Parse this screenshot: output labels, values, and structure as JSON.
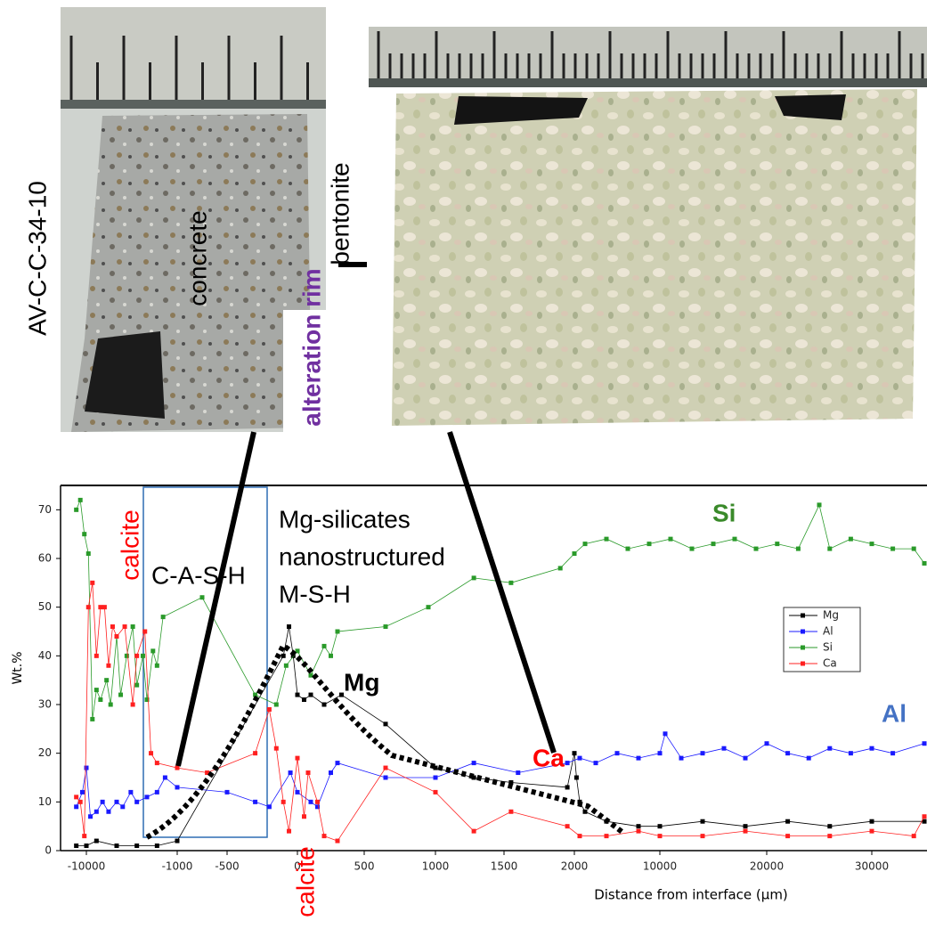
{
  "photo_labels": {
    "sample": "AV-C-C-34-10",
    "concrete": "concrete",
    "bentonite": "bentonite",
    "rim": "alteration rim"
  },
  "chart_data": {
    "type": "line",
    "y_label": "Wt.%",
    "x_label": "Distance from interface (μm)",
    "xlim": [
      -12500,
      35000
    ],
    "ylim": [
      0,
      75
    ],
    "xticks": [
      -10000,
      -1000,
      -500,
      0,
      500,
      1000,
      1500,
      2000,
      10000,
      20000,
      30000
    ],
    "yticks": [
      0,
      10,
      20,
      30,
      40,
      50,
      60,
      70
    ],
    "annotations": {
      "calcite_top": "calcite",
      "calcite_bottom": "calcite",
      "cash": "C-A-S-H",
      "mgsil": "Mg-silicates",
      "nano": "nanostructured",
      "msh": "M-S-H",
      "si": "Si",
      "mg": "Mg",
      "al": "Al",
      "ca": "Ca"
    },
    "series": [
      {
        "name": "Mg",
        "color": "#000000",
        "x": [
          -11000,
          -10000,
          -9000,
          -7000,
          -5000,
          -3000,
          -1000,
          -100,
          -60,
          -30,
          0,
          50,
          100,
          200,
          330,
          650,
          1000,
          1280,
          1550,
          1950,
          2000,
          2200,
          2500,
          3000,
          5000,
          8000,
          10000,
          14000,
          18000,
          22000,
          26000,
          30000,
          35000
        ],
        "values": [
          1,
          1,
          2,
          1,
          1,
          1,
          2,
          40,
          46,
          40,
          32,
          31,
          32,
          30,
          32,
          26,
          17,
          15,
          14,
          13,
          20,
          15,
          10,
          8,
          6,
          5,
          5,
          6,
          5,
          6,
          5,
          6,
          6
        ]
      },
      {
        "name": "Al",
        "color": "#1a1aff",
        "x": [
          -11000,
          -10400,
          -10000,
          -9600,
          -9000,
          -8400,
          -7800,
          -7000,
          -6400,
          -5600,
          -5000,
          -4000,
          -3000,
          -2200,
          -1000,
          -500,
          -300,
          -200,
          -50,
          0,
          100,
          150,
          250,
          300,
          650,
          1000,
          1280,
          1600,
          1950,
          2500,
          4000,
          6000,
          8000,
          10000,
          10500,
          12000,
          14000,
          16000,
          18000,
          20000,
          22000,
          24000,
          26000,
          28000,
          30000,
          32000,
          35000
        ],
        "values": [
          9,
          12,
          17,
          7,
          8,
          10,
          8,
          10,
          9,
          12,
          10,
          11,
          12,
          15,
          13,
          12,
          10,
          9,
          16,
          12,
          10,
          9,
          16,
          18,
          15,
          15,
          18,
          16,
          18,
          19,
          18,
          20,
          19,
          20,
          24,
          19,
          20,
          21,
          19,
          22,
          20,
          19,
          21,
          20,
          21,
          20,
          22
        ]
      },
      {
        "name": "Si",
        "color": "#2a9a2a",
        "x": [
          -11000,
          -10600,
          -10200,
          -9800,
          -9400,
          -9000,
          -8600,
          -8000,
          -7600,
          -7000,
          -6600,
          -6000,
          -5400,
          -5000,
          -4400,
          -4000,
          -3400,
          -3000,
          -2400,
          -750,
          -300,
          -150,
          -80,
          0,
          100,
          200,
          250,
          300,
          650,
          950,
          1280,
          1550,
          1900,
          2000,
          3000,
          5000,
          7000,
          9000,
          11000,
          13000,
          15000,
          17000,
          19000,
          21000,
          23000,
          25000,
          26000,
          28000,
          30000,
          32000,
          34000,
          35000
        ],
        "values": [
          70,
          72,
          65,
          61,
          27,
          33,
          31,
          35,
          30,
          44,
          32,
          40,
          46,
          34,
          40,
          31,
          41,
          38,
          48,
          52,
          32,
          30,
          38,
          41,
          36,
          42,
          40,
          45,
          46,
          50,
          56,
          55,
          58,
          61,
          63,
          64,
          62,
          63,
          64,
          62,
          63,
          64,
          62,
          63,
          62,
          71,
          62,
          64,
          63,
          62,
          62,
          59
        ]
      },
      {
        "name": "Ca",
        "color": "#ff2020",
        "x": [
          -11000,
          -10600,
          -10200,
          -9800,
          -9400,
          -9000,
          -8600,
          -8200,
          -7800,
          -7400,
          -7000,
          -6200,
          -5400,
          -5000,
          -4200,
          -3600,
          -3000,
          -1000,
          -700,
          -300,
          -200,
          -150,
          -100,
          -60,
          0,
          50,
          80,
          150,
          200,
          300,
          650,
          1000,
          1280,
          1550,
          1950,
          2500,
          5000,
          8000,
          10000,
          14000,
          18000,
          22000,
          26000,
          30000,
          34000,
          35000
        ],
        "values": [
          11,
          10,
          3,
          50,
          55,
          40,
          50,
          50,
          38,
          46,
          44,
          46,
          30,
          40,
          45,
          20,
          18,
          17,
          16,
          20,
          29,
          21,
          10,
          4,
          19,
          7,
          16,
          10,
          3,
          2,
          17,
          12,
          4,
          8,
          5,
          3,
          3,
          4,
          3,
          3,
          4,
          3,
          3,
          4,
          3,
          7
        ]
      }
    ]
  }
}
